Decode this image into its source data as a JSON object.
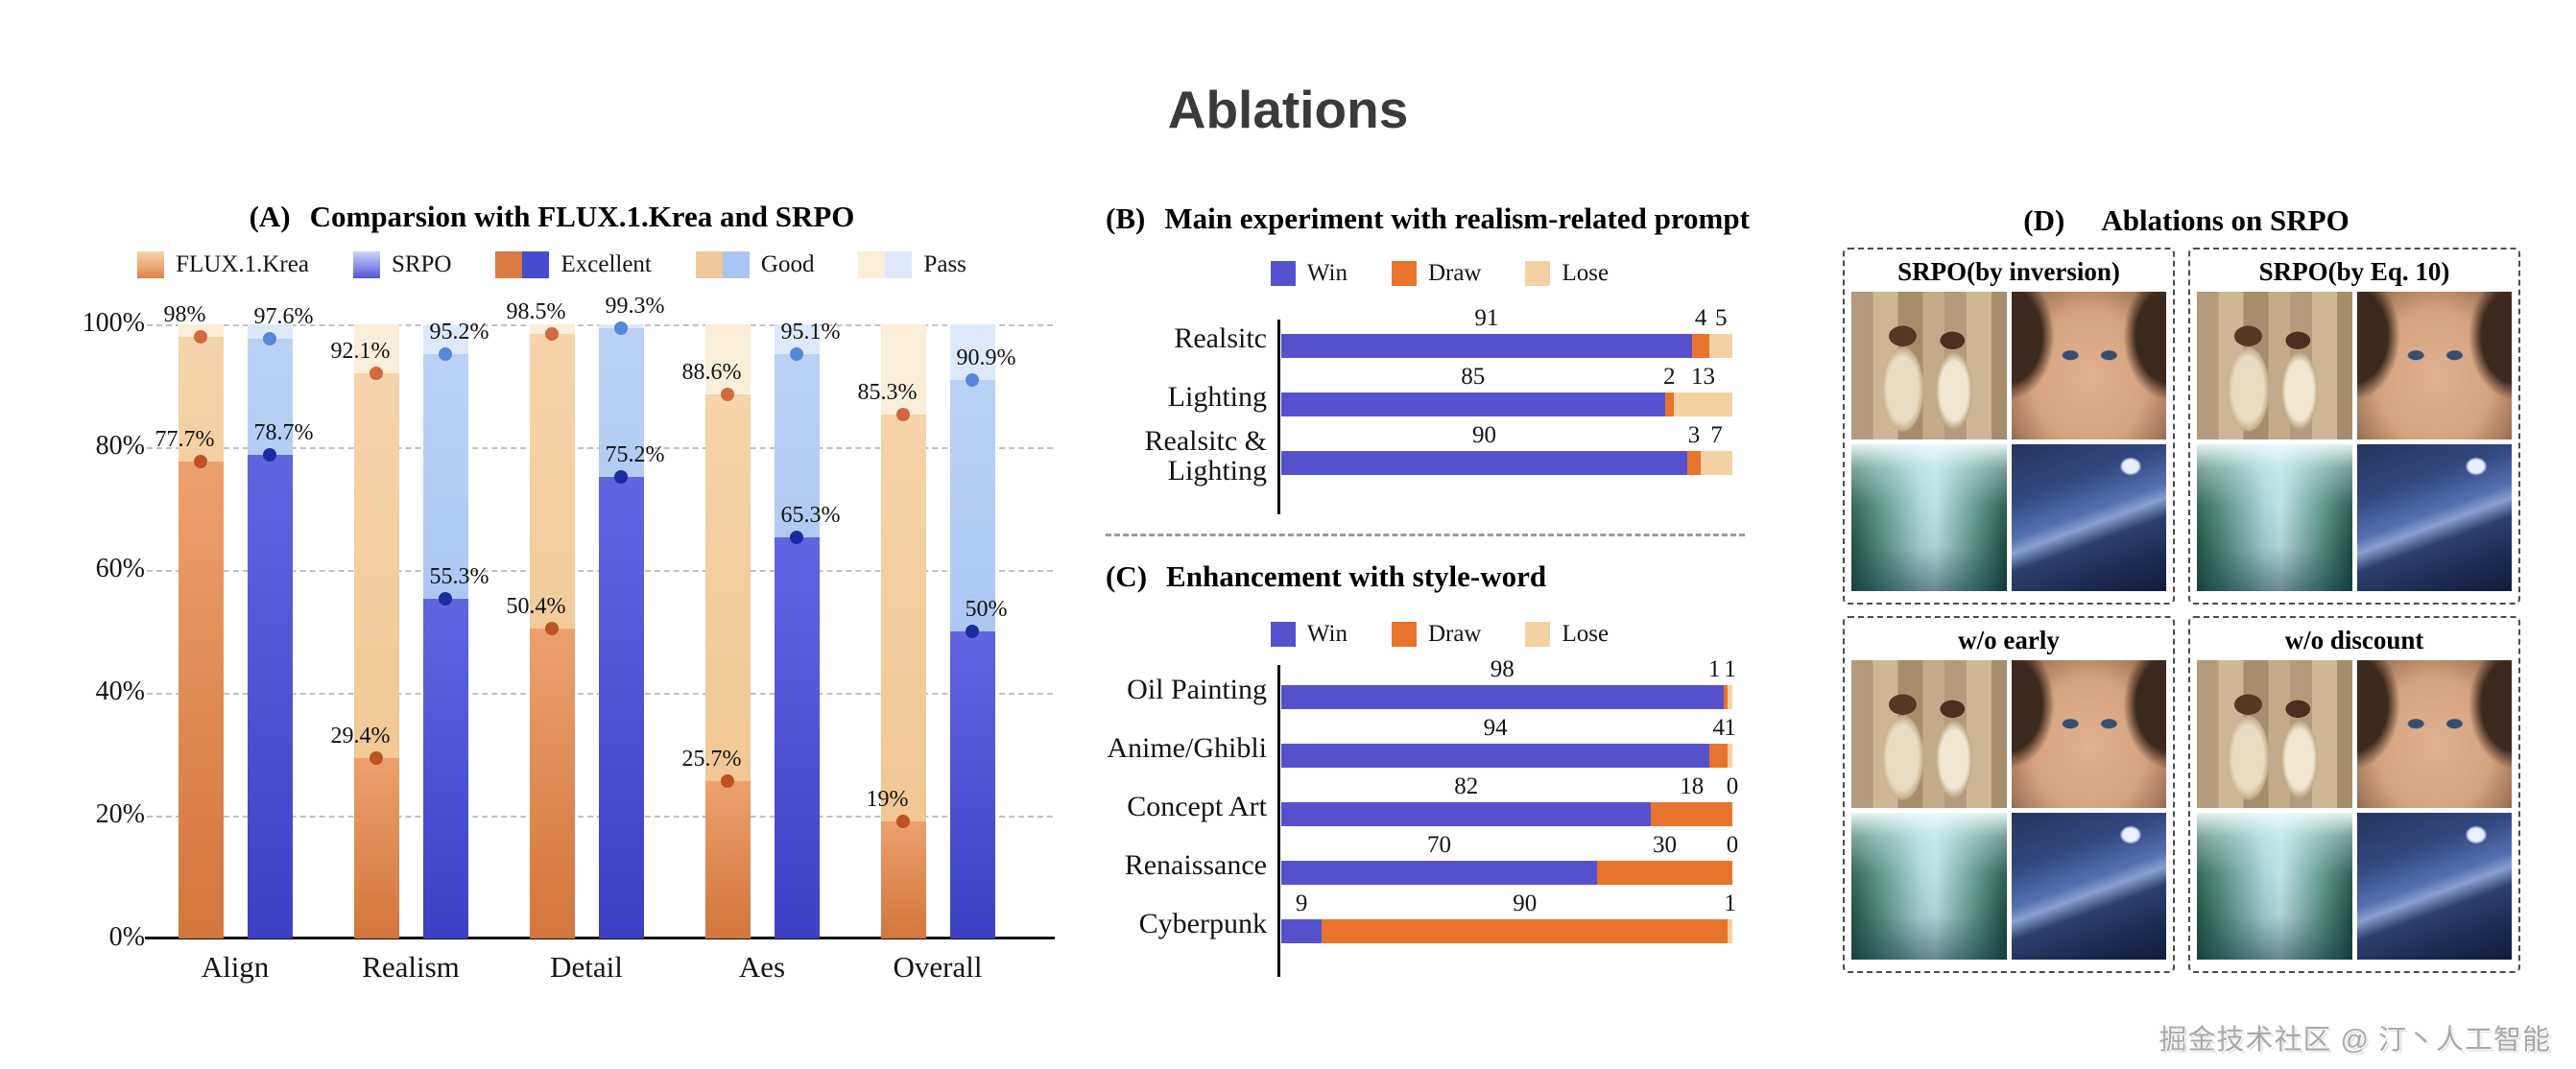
{
  "page_title": "Ablations",
  "watermark": "掘金技术社区 @ 汀丶人工智能",
  "colors": {
    "flux_excellent": "#d97a42",
    "flux_good": "#f0c79a",
    "flux_pass": "#faeeda",
    "srpo_excellent": "#474bcd",
    "srpo_good": "#a9c5f1",
    "srpo_pass": "#dde9fb",
    "dot_flux_excellent": "#bf5122",
    "dot_flux_good": "#d2693e",
    "dot_srpo_excellent": "#1a2c9e",
    "dot_srpo_good": "#5787da",
    "win": "#5652cd",
    "draw": "#e8732c",
    "lose": "#f3d1a2",
    "gridline": "#c3c3c3",
    "axis": "#111111",
    "main_title": "#3a3a3a"
  },
  "chart_data": [
    {
      "id": "panelA",
      "type": "bar",
      "tag": "(A)",
      "title": "Comparsion with FLUX.1.Krea and SRPO",
      "categories": [
        "Align",
        "Realism",
        "Detail",
        "Aes",
        "Overall"
      ],
      "ylim": [
        0,
        100
      ],
      "grid": "dashed horizontal",
      "yticks": [
        {
          "label": "0%",
          "value": 0
        },
        {
          "label": "20%",
          "value": 20
        },
        {
          "label": "40%",
          "value": 40
        },
        {
          "label": "60%",
          "value": 60
        },
        {
          "label": "80%",
          "value": 80
        },
        {
          "label": "100%",
          "value": 100
        }
      ],
      "legend": [
        {
          "label": "FLUX.1.Krea",
          "swatch": "gradient-orange"
        },
        {
          "label": "SRPO",
          "swatch": "gradient-blue"
        },
        {
          "label": "Excellent",
          "swatch": "pair-excellent"
        },
        {
          "label": "Good",
          "swatch": "pair-good"
        },
        {
          "label": "Pass",
          "swatch": "pair-pass"
        }
      ],
      "series": [
        {
          "name": "FLUX.1.Krea",
          "palette": "flux",
          "excellent": [
            77.7,
            29.4,
            50.4,
            25.7,
            19.0
          ],
          "good": [
            98.0,
            92.1,
            98.5,
            88.6,
            85.3
          ],
          "pass": [
            100,
            100,
            100,
            100,
            100
          ],
          "labels_excellent": [
            "77.7%",
            "29.4%",
            "50.4%",
            "25.7%",
            "19%"
          ],
          "labels_good": [
            "98%",
            "92.1%",
            "98.5%",
            "88.6%",
            "85.3%"
          ]
        },
        {
          "name": "SRPO",
          "palette": "srpo",
          "excellent": [
            78.7,
            55.3,
            75.2,
            65.3,
            50.0
          ],
          "good": [
            97.6,
            95.2,
            99.3,
            95.1,
            90.9
          ],
          "pass": [
            100,
            100,
            100,
            100,
            100
          ],
          "labels_excellent": [
            "78.7%",
            "55.3%",
            "75.2%",
            "65.3%",
            "50%"
          ],
          "labels_good": [
            "97.6%",
            "95.2%",
            "99.3%",
            "95.1%",
            "90.9%"
          ]
        }
      ]
    },
    {
      "id": "panelB",
      "type": "stacked_hbar",
      "tag": "(B)",
      "title": "Main experiment with realism-related prompt",
      "legend": [
        "Win",
        "Draw",
        "Lose"
      ],
      "categories": [
        "Realsitc",
        "Lighting",
        "Realsitc & Lighting"
      ],
      "series": [
        {
          "name": "Win",
          "values": [
            91,
            85,
            90
          ]
        },
        {
          "name": "Draw",
          "values": [
            4,
            2,
            3
          ]
        },
        {
          "name": "Lose",
          "values": [
            5,
            13,
            7
          ]
        }
      ]
    },
    {
      "id": "panelC",
      "type": "stacked_hbar",
      "tag": "(C)",
      "title": "Enhancement with style-word",
      "legend": [
        "Win",
        "Draw",
        "Lose"
      ],
      "categories": [
        "Oil Painting",
        "Anime/Ghibli",
        "Concept Art",
        "Renaissance",
        "Cyberpunk"
      ],
      "series": [
        {
          "name": "Win",
          "values": [
            98,
            94,
            82,
            70,
            9
          ]
        },
        {
          "name": "Draw",
          "values": [
            1,
            4,
            18,
            30,
            90
          ]
        },
        {
          "name": "Lose",
          "values": [
            1,
            1,
            0,
            0,
            1
          ]
        }
      ]
    }
  ],
  "panel_d": {
    "tag": "(D)",
    "title": "Ablations on SRPO",
    "boxes": [
      {
        "label": "SRPO(by inversion)",
        "images": [
          "couple-portrait",
          "face-closeup",
          "waterfall-canyon",
          "night-mountain"
        ]
      },
      {
        "label": "SRPO(by Eq. 10)",
        "images": [
          "couple-portrait",
          "face-closeup",
          "waterfall-canyon",
          "night-mountain"
        ]
      },
      {
        "label": "w/o early",
        "images": [
          "couple-portrait",
          "face-closeup",
          "waterfall-canyon",
          "night-mountain"
        ]
      },
      {
        "label": "w/o discount",
        "images": [
          "couple-portrait",
          "face-closeup",
          "waterfall-canyon",
          "night-mountain"
        ]
      }
    ]
  }
}
